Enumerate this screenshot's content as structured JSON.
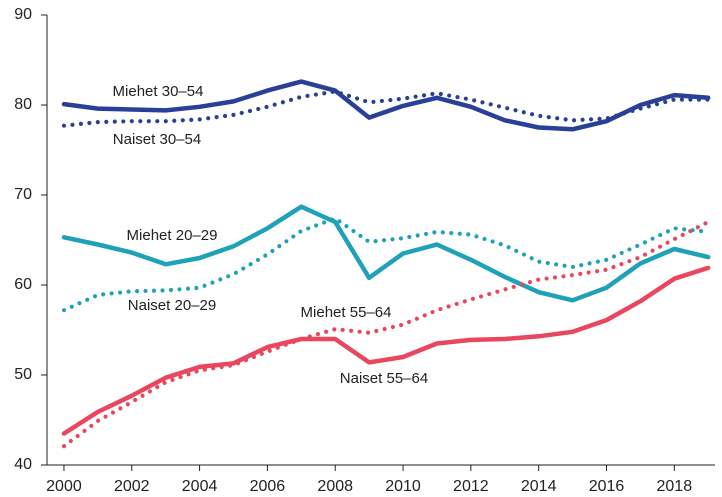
{
  "chart_data": {
    "type": "line",
    "x": [
      2000,
      2001,
      2002,
      2003,
      2004,
      2005,
      2006,
      2007,
      2008,
      2009,
      2010,
      2011,
      2012,
      2013,
      2014,
      2015,
      2016,
      2017,
      2018,
      2019
    ],
    "xlim": [
      1999.5,
      2019.2
    ],
    "xticks": [
      2000,
      2002,
      2004,
      2006,
      2008,
      2010,
      2012,
      2014,
      2016,
      2018
    ],
    "ylim": [
      40,
      90
    ],
    "yticks": [
      40,
      50,
      60,
      70,
      80,
      90
    ],
    "series": [
      {
        "name": "Miehet 30–54",
        "color": "#2a3f98",
        "style": "solid",
        "values": [
          80.1,
          79.6,
          79.5,
          79.4,
          79.8,
          80.4,
          81.6,
          82.6,
          81.6,
          78.6,
          79.9,
          80.8,
          79.8,
          78.3,
          77.5,
          77.3,
          78.2,
          80.0,
          81.1,
          80.8
        ]
      },
      {
        "name": "Naiset 30–54",
        "color": "#2a3f98",
        "style": "dotted",
        "values": [
          77.7,
          78.1,
          78.2,
          78.2,
          78.4,
          78.9,
          79.8,
          80.9,
          81.5,
          80.3,
          80.7,
          81.3,
          80.6,
          79.7,
          78.8,
          78.3,
          78.5,
          79.6,
          80.6,
          80.6
        ]
      },
      {
        "name": "Miehet 20–29",
        "color": "#1fa2b9",
        "style": "solid",
        "values": [
          65.3,
          64.5,
          63.6,
          62.3,
          63.0,
          64.3,
          66.3,
          68.7,
          67.0,
          60.8,
          63.5,
          64.5,
          62.8,
          60.9,
          59.2,
          58.3,
          59.7,
          62.4,
          64.0,
          63.1
        ]
      },
      {
        "name": "Naiset 20–29",
        "color": "#1fa2b9",
        "style": "dotted",
        "values": [
          57.2,
          58.9,
          59.3,
          59.4,
          59.7,
          61.2,
          63.4,
          66.0,
          67.4,
          64.8,
          65.2,
          65.9,
          65.6,
          64.4,
          62.6,
          62.0,
          62.8,
          64.5,
          66.3,
          65.9
        ]
      },
      {
        "name": "Miehet 55–64",
        "color": "#e8475f",
        "style": "solid",
        "values": [
          43.5,
          45.9,
          47.7,
          49.7,
          50.9,
          51.3,
          53.1,
          54.0,
          54.0,
          51.4,
          52.0,
          53.5,
          53.9,
          54.0,
          54.3,
          54.8,
          56.1,
          58.2,
          60.7,
          61.9
        ]
      },
      {
        "name": "Naiset 55–64",
        "color": "#e8475f",
        "style": "dotted",
        "values": [
          42.1,
          44.9,
          47.0,
          49.2,
          50.5,
          51.1,
          52.6,
          54.0,
          55.1,
          54.7,
          55.6,
          57.2,
          58.4,
          59.5,
          60.6,
          61.1,
          61.7,
          63.1,
          65.1,
          67.0
        ]
      }
    ]
  }
}
